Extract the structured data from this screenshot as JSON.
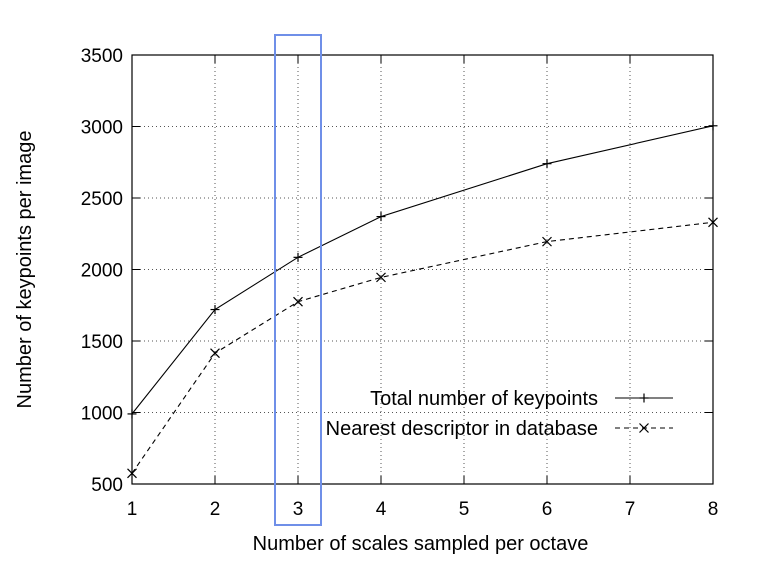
{
  "chart_data": {
    "type": "line",
    "title": "",
    "xlabel": "Number of scales sampled per octave",
    "ylabel": "Number of keypoints per image",
    "x": [
      1,
      2,
      3,
      4,
      5,
      6,
      7,
      8
    ],
    "xlim": [
      1,
      8
    ],
    "ylim": [
      500,
      3500
    ],
    "xticks": [
      "1",
      "2",
      "3",
      "4",
      "5",
      "6",
      "7",
      "8"
    ],
    "yticks": [
      "500",
      "1000",
      "1500",
      "2000",
      "2500",
      "3000",
      "3500"
    ],
    "grid": true,
    "legend_position": "bottom-right",
    "series": [
      {
        "name": "Total number of keypoints",
        "marker": "+",
        "line_style": "solid",
        "x": [
          1,
          2,
          3,
          4,
          6,
          8
        ],
        "values": [
          990,
          1720,
          2085,
          2370,
          2740,
          3005
        ]
      },
      {
        "name": "Nearest descriptor in database",
        "marker": "x",
        "line_style": "dashed",
        "x": [
          1,
          2,
          3,
          4,
          6,
          8
        ],
        "values": [
          575,
          1415,
          1775,
          1945,
          2195,
          2330
        ]
      }
    ],
    "highlight": {
      "x": 3,
      "color": "#6f8fe8"
    }
  }
}
